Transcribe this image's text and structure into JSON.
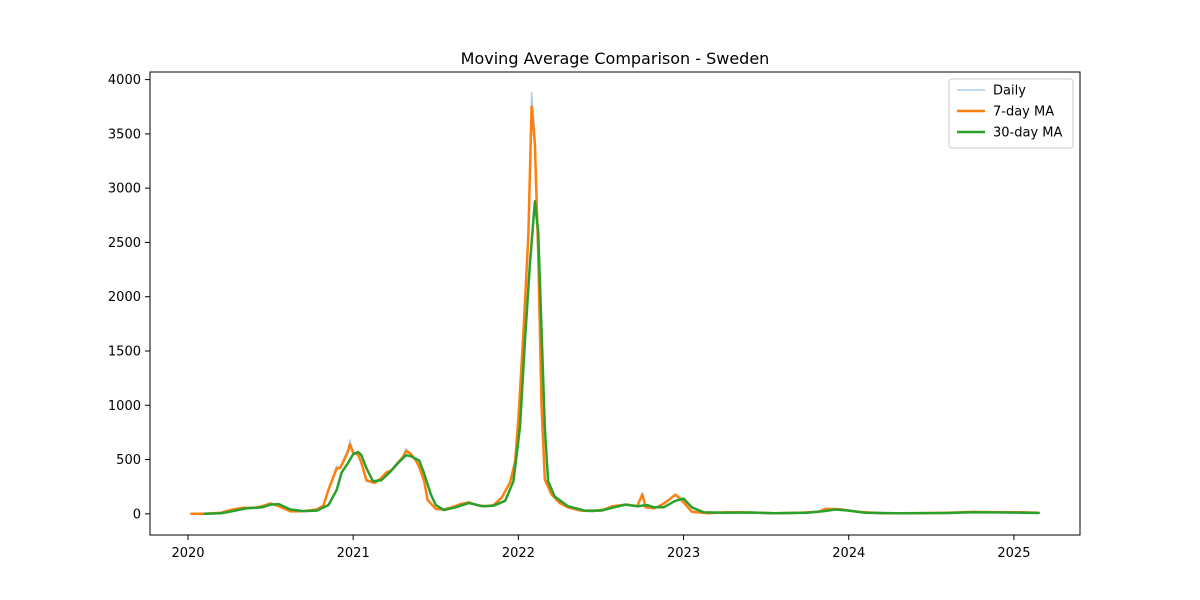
{
  "chart_data": {
    "type": "line",
    "title": "Moving Average Comparison - Sweden",
    "xlabel": "",
    "ylabel": "",
    "xlim": [
      2019.77,
      2025.4
    ],
    "ylim": [
      -195,
      4070
    ],
    "x_ticks": [
      2020,
      2021,
      2022,
      2023,
      2024,
      2025
    ],
    "y_ticks": [
      0,
      500,
      1000,
      1500,
      2000,
      2500,
      3000,
      3500,
      4000
    ],
    "grid": false,
    "legend_position": "top-right",
    "series": [
      {
        "name": "Daily",
        "color": "#aecde8",
        "line_width": 1.5,
        "points": [
          [
            2020.02,
            0
          ],
          [
            2020.1,
            0
          ],
          [
            2020.2,
            10
          ],
          [
            2020.27,
            40
          ],
          [
            2020.33,
            60
          ],
          [
            2020.4,
            55
          ],
          [
            2020.45,
            75
          ],
          [
            2020.5,
            100
          ],
          [
            2020.55,
            70
          ],
          [
            2020.62,
            20
          ],
          [
            2020.7,
            25
          ],
          [
            2020.78,
            40
          ],
          [
            2020.82,
            80
          ],
          [
            2020.85,
            230
          ],
          [
            2020.88,
            350
          ],
          [
            2020.9,
            440
          ],
          [
            2020.92,
            430
          ],
          [
            2020.95,
            530
          ],
          [
            2020.97,
            600
          ],
          [
            2020.98,
            680
          ],
          [
            2021.0,
            570
          ],
          [
            2021.03,
            550
          ],
          [
            2021.05,
            480
          ],
          [
            2021.08,
            300
          ],
          [
            2021.13,
            280
          ],
          [
            2021.17,
            330
          ],
          [
            2021.2,
            380
          ],
          [
            2021.23,
            400
          ],
          [
            2021.27,
            480
          ],
          [
            2021.3,
            520
          ],
          [
            2021.32,
            600
          ],
          [
            2021.35,
            550
          ],
          [
            2021.38,
            490
          ],
          [
            2021.4,
            430
          ],
          [
            2021.43,
            300
          ],
          [
            2021.45,
            120
          ],
          [
            2021.5,
            40
          ],
          [
            2021.55,
            40
          ],
          [
            2021.6,
            60
          ],
          [
            2021.65,
            90
          ],
          [
            2021.7,
            110
          ],
          [
            2021.75,
            80
          ],
          [
            2021.8,
            70
          ],
          [
            2021.85,
            80
          ],
          [
            2021.9,
            150
          ],
          [
            2021.95,
            300
          ],
          [
            2021.98,
            500
          ],
          [
            2022.0,
            900
          ],
          [
            2022.03,
            1700
          ],
          [
            2022.06,
            2600
          ],
          [
            2022.08,
            3880
          ],
          [
            2022.1,
            3500
          ],
          [
            2022.12,
            2500
          ],
          [
            2022.14,
            1000
          ],
          [
            2022.16,
            300
          ],
          [
            2022.2,
            180
          ],
          [
            2022.25,
            100
          ],
          [
            2022.3,
            60
          ],
          [
            2022.38,
            30
          ],
          [
            2022.45,
            25
          ],
          [
            2022.52,
            40
          ],
          [
            2022.57,
            70
          ],
          [
            2022.65,
            90
          ],
          [
            2022.72,
            70
          ],
          [
            2022.75,
            195
          ],
          [
            2022.77,
            60
          ],
          [
            2022.82,
            50
          ],
          [
            2022.86,
            80
          ],
          [
            2022.9,
            120
          ],
          [
            2022.95,
            180
          ],
          [
            2022.98,
            140
          ],
          [
            2023.05,
            20
          ],
          [
            2023.15,
            5
          ],
          [
            2023.25,
            15
          ],
          [
            2023.35,
            15
          ],
          [
            2023.45,
            10
          ],
          [
            2023.55,
            5
          ],
          [
            2023.7,
            10
          ],
          [
            2023.82,
            20
          ],
          [
            2023.86,
            50
          ],
          [
            2023.95,
            45
          ],
          [
            2024.05,
            20
          ],
          [
            2024.2,
            5
          ],
          [
            2024.4,
            5
          ],
          [
            2024.6,
            10
          ],
          [
            2024.75,
            20
          ],
          [
            2024.9,
            15
          ],
          [
            2025.05,
            15
          ],
          [
            2025.15,
            10
          ]
        ]
      },
      {
        "name": "7-day MA",
        "color": "#ff7f0e",
        "line_width": 2.5,
        "points": [
          [
            2020.02,
            0
          ],
          [
            2020.1,
            0
          ],
          [
            2020.2,
            10
          ],
          [
            2020.27,
            40
          ],
          [
            2020.33,
            55
          ],
          [
            2020.4,
            55
          ],
          [
            2020.45,
            70
          ],
          [
            2020.5,
            95
          ],
          [
            2020.55,
            70
          ],
          [
            2020.62,
            22
          ],
          [
            2020.7,
            25
          ],
          [
            2020.78,
            40
          ],
          [
            2020.82,
            75
          ],
          [
            2020.85,
            220
          ],
          [
            2020.88,
            340
          ],
          [
            2020.9,
            420
          ],
          [
            2020.92,
            420
          ],
          [
            2020.95,
            510
          ],
          [
            2020.97,
            580
          ],
          [
            2020.98,
            640
          ],
          [
            2021.0,
            560
          ],
          [
            2021.03,
            545
          ],
          [
            2021.05,
            470
          ],
          [
            2021.08,
            310
          ],
          [
            2021.13,
            285
          ],
          [
            2021.17,
            330
          ],
          [
            2021.2,
            380
          ],
          [
            2021.23,
            400
          ],
          [
            2021.27,
            470
          ],
          [
            2021.3,
            520
          ],
          [
            2021.32,
            580
          ],
          [
            2021.35,
            550
          ],
          [
            2021.38,
            490
          ],
          [
            2021.4,
            430
          ],
          [
            2021.43,
            300
          ],
          [
            2021.45,
            130
          ],
          [
            2021.5,
            45
          ],
          [
            2021.55,
            40
          ],
          [
            2021.6,
            60
          ],
          [
            2021.65,
            90
          ],
          [
            2021.7,
            105
          ],
          [
            2021.75,
            80
          ],
          [
            2021.8,
            70
          ],
          [
            2021.85,
            80
          ],
          [
            2021.9,
            150
          ],
          [
            2021.95,
            290
          ],
          [
            2021.98,
            480
          ],
          [
            2022.0,
            880
          ],
          [
            2022.03,
            1650
          ],
          [
            2022.06,
            2550
          ],
          [
            2022.08,
            3750
          ],
          [
            2022.1,
            3400
          ],
          [
            2022.12,
            2400
          ],
          [
            2022.14,
            1000
          ],
          [
            2022.16,
            320
          ],
          [
            2022.2,
            180
          ],
          [
            2022.25,
            100
          ],
          [
            2022.3,
            60
          ],
          [
            2022.38,
            30
          ],
          [
            2022.45,
            25
          ],
          [
            2022.52,
            40
          ],
          [
            2022.57,
            70
          ],
          [
            2022.65,
            85
          ],
          [
            2022.72,
            70
          ],
          [
            2022.75,
            180
          ],
          [
            2022.77,
            60
          ],
          [
            2022.82,
            50
          ],
          [
            2022.86,
            75
          ],
          [
            2022.9,
            115
          ],
          [
            2022.95,
            175
          ],
          [
            2022.98,
            140
          ],
          [
            2023.05,
            20
          ],
          [
            2023.15,
            5
          ],
          [
            2023.25,
            15
          ],
          [
            2023.35,
            15
          ],
          [
            2023.45,
            10
          ],
          [
            2023.55,
            5
          ],
          [
            2023.7,
            10
          ],
          [
            2023.82,
            20
          ],
          [
            2023.86,
            45
          ],
          [
            2023.95,
            42
          ],
          [
            2024.05,
            20
          ],
          [
            2024.2,
            5
          ],
          [
            2024.4,
            5
          ],
          [
            2024.6,
            10
          ],
          [
            2024.75,
            18
          ],
          [
            2024.9,
            15
          ],
          [
            2025.05,
            14
          ],
          [
            2025.15,
            10
          ]
        ]
      },
      {
        "name": "30-day MA",
        "color": "#2ca02c",
        "line_width": 2.5,
        "points": [
          [
            2020.1,
            0
          ],
          [
            2020.2,
            5
          ],
          [
            2020.27,
            25
          ],
          [
            2020.35,
            50
          ],
          [
            2020.45,
            60
          ],
          [
            2020.5,
            85
          ],
          [
            2020.55,
            90
          ],
          [
            2020.62,
            40
          ],
          [
            2020.7,
            25
          ],
          [
            2020.78,
            30
          ],
          [
            2020.85,
            80
          ],
          [
            2020.9,
            220
          ],
          [
            2020.93,
            380
          ],
          [
            2020.97,
            470
          ],
          [
            2021.0,
            550
          ],
          [
            2021.03,
            570
          ],
          [
            2021.05,
            540
          ],
          [
            2021.08,
            420
          ],
          [
            2021.12,
            300
          ],
          [
            2021.17,
            310
          ],
          [
            2021.22,
            380
          ],
          [
            2021.28,
            480
          ],
          [
            2021.32,
            540
          ],
          [
            2021.35,
            530
          ],
          [
            2021.4,
            490
          ],
          [
            2021.43,
            370
          ],
          [
            2021.47,
            180
          ],
          [
            2021.5,
            80
          ],
          [
            2021.55,
            35
          ],
          [
            2021.62,
            60
          ],
          [
            2021.7,
            100
          ],
          [
            2021.78,
            70
          ],
          [
            2021.85,
            75
          ],
          [
            2021.92,
            120
          ],
          [
            2021.97,
            300
          ],
          [
            2022.01,
            800
          ],
          [
            2022.04,
            1600
          ],
          [
            2022.07,
            2300
          ],
          [
            2022.1,
            2880
          ],
          [
            2022.12,
            2600
          ],
          [
            2022.14,
            1700
          ],
          [
            2022.16,
            800
          ],
          [
            2022.18,
            300
          ],
          [
            2022.22,
            160
          ],
          [
            2022.3,
            70
          ],
          [
            2022.4,
            30
          ],
          [
            2022.5,
            30
          ],
          [
            2022.58,
            60
          ],
          [
            2022.65,
            85
          ],
          [
            2022.72,
            70
          ],
          [
            2022.78,
            80
          ],
          [
            2022.82,
            60
          ],
          [
            2022.88,
            60
          ],
          [
            2022.95,
            120
          ],
          [
            2023.0,
            140
          ],
          [
            2023.05,
            60
          ],
          [
            2023.12,
            15
          ],
          [
            2023.25,
            10
          ],
          [
            2023.4,
            12
          ],
          [
            2023.55,
            5
          ],
          [
            2023.75,
            10
          ],
          [
            2023.85,
            25
          ],
          [
            2023.92,
            40
          ],
          [
            2024.0,
            30
          ],
          [
            2024.1,
            10
          ],
          [
            2024.3,
            5
          ],
          [
            2024.6,
            8
          ],
          [
            2024.75,
            15
          ],
          [
            2024.95,
            12
          ],
          [
            2025.15,
            8
          ]
        ]
      }
    ]
  }
}
